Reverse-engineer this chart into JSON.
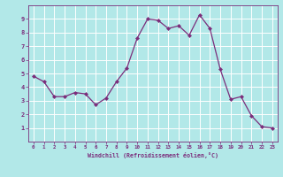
{
  "x": [
    0,
    1,
    2,
    3,
    4,
    5,
    6,
    7,
    8,
    9,
    10,
    11,
    12,
    13,
    14,
    15,
    16,
    17,
    18,
    19,
    20,
    21,
    22,
    23
  ],
  "y": [
    4.8,
    4.4,
    3.3,
    3.3,
    3.6,
    3.5,
    2.7,
    3.2,
    4.4,
    5.4,
    7.6,
    9.0,
    8.9,
    8.3,
    8.5,
    7.8,
    9.3,
    8.3,
    5.3,
    3.1,
    3.3,
    1.9,
    1.1,
    1.0
  ],
  "line_color": "#7b2d7b",
  "marker": "D",
  "marker_size": 2.0,
  "background_color": "#b2e8e8",
  "grid_color": "#ffffff",
  "xlabel": "Windchill (Refroidissement éolien,°C)",
  "xlabel_color": "#7b2d7b",
  "tick_color": "#7b2d7b",
  "xlim": [
    -0.5,
    23.5
  ],
  "ylim": [
    0,
    10
  ],
  "yticks": [
    1,
    2,
    3,
    4,
    5,
    6,
    7,
    8,
    9
  ],
  "xticks": [
    0,
    1,
    2,
    3,
    4,
    5,
    6,
    7,
    8,
    9,
    10,
    11,
    12,
    13,
    14,
    15,
    16,
    17,
    18,
    19,
    20,
    21,
    22,
    23
  ],
  "spine_color": "#7b2d7b",
  "font_family": "monospace",
  "line_width": 0.9
}
